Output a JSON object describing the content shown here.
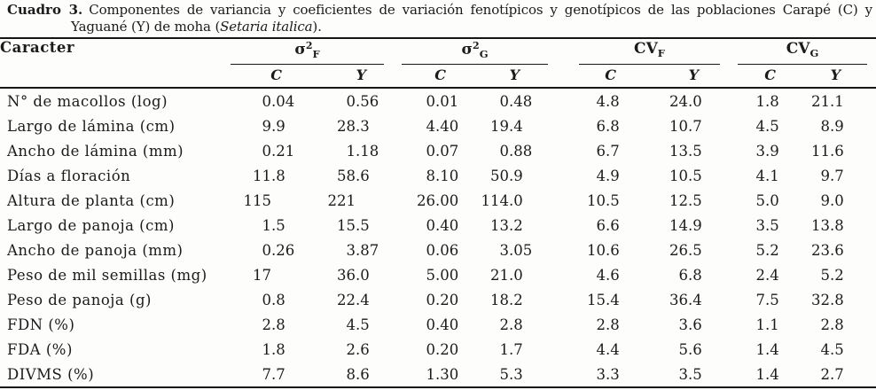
{
  "caption": {
    "line1_label": "Cuadro 3.",
    "line1_text": "Componentes de variancia y coeficientes de variación fenotípicos y genotípicos de las poblaciones Carapé (C) y",
    "line2_text": "Yaguané (Y) de moha (",
    "line2_italic": "Setaria italica",
    "line2_suffix": ")."
  },
  "table": {
    "caracter_header": "Caracter",
    "groups": [
      {
        "base": "σ",
        "sup": "2",
        "sub": "F"
      },
      {
        "base": "σ",
        "sup": "2",
        "sub": "G"
      },
      {
        "base": "CV",
        "sup": "",
        "sub": "F"
      },
      {
        "base": "CV",
        "sup": "",
        "sub": "G"
      }
    ],
    "subheaders": [
      "C",
      "Y",
      "C",
      "Y",
      "C",
      "Y",
      "C",
      "Y"
    ],
    "rows": [
      {
        "caracter": "N° de macollos (log)",
        "values": [
          "0.04",
          "0.56",
          "0.01",
          "0.48",
          "4.8",
          "24.0",
          "1.8",
          "21.1"
        ]
      },
      {
        "caracter": "Largo de lámina (cm)",
        "values": [
          "9.9",
          "28.3",
          "4.40",
          "19.4",
          "6.8",
          "10.7",
          "4.5",
          "8.9"
        ]
      },
      {
        "caracter": "Ancho de lámina (mm)",
        "values": [
          "0.21",
          "1.18",
          "0.07",
          "0.88",
          "6.7",
          "13.5",
          "3.9",
          "11.6"
        ]
      },
      {
        "caracter": "Días a floración",
        "values": [
          "11.8",
          "58.6",
          "8.10",
          "50.9",
          "4.9",
          "10.5",
          "4.1",
          "9.7"
        ]
      },
      {
        "caracter": "Altura de planta (cm)",
        "values": [
          "115",
          "221",
          "26.00",
          "114.0",
          "10.5",
          "12.5",
          "5.0",
          "9.0"
        ]
      },
      {
        "caracter": "Largo de panoja (cm)",
        "values": [
          "1.5",
          "15.5",
          "0.40",
          "13.2",
          "6.6",
          "14.9",
          "3.5",
          "13.8"
        ]
      },
      {
        "caracter": "Ancho de panoja (mm)",
        "values": [
          "0.26",
          "3.87",
          "0.06",
          "3.05",
          "10.6",
          "26.5",
          "5.2",
          "23.6"
        ]
      },
      {
        "caracter": "Peso de mil semillas (mg)",
        "values": [
          "17",
          "36.0",
          "5.00",
          "21.0",
          "4.6",
          "6.8",
          "2.4",
          "5.2"
        ]
      },
      {
        "caracter": "Peso de panoja (g)",
        "values": [
          "0.8",
          "22.4",
          "0.20",
          "18.2",
          "15.4",
          "36.4",
          "7.5",
          "32.8"
        ]
      },
      {
        "caracter": "FDN (%)",
        "values": [
          "2.8",
          "4.5",
          "0.40",
          "2.8",
          "2.8",
          "3.6",
          "1.1",
          "2.8"
        ]
      },
      {
        "caracter": "FDA (%)",
        "values": [
          "1.8",
          "2.6",
          "0.20",
          "1.7",
          "4.4",
          "5.6",
          "1.4",
          "4.5"
        ]
      },
      {
        "caracter": "DIVMS (%)",
        "values": [
          "7.7",
          "8.6",
          "1.30",
          "5.3",
          "3.3",
          "3.5",
          "1.4",
          "2.7"
        ]
      }
    ]
  }
}
